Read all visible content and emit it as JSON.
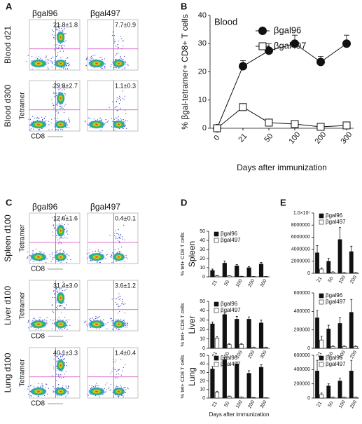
{
  "panel_labels": [
    "A",
    "B",
    "C",
    "D",
    "E"
  ],
  "flow_a": {
    "columns": [
      "βgal96",
      "βgal497"
    ],
    "x_label": "CD8",
    "y_label": "Tetramer",
    "rows": [
      {
        "label": "Blood d21",
        "values": [
          "21.8±1.8",
          "7.7±0.9"
        ]
      },
      {
        "label": "Blood d300",
        "values": [
          "29.8±2.7",
          "1.1±0.3"
        ]
      }
    ]
  },
  "flow_c": {
    "columns": [
      "βgal96",
      "βgal497"
    ],
    "x_label": "CD8",
    "y_label": "Tetramer",
    "rows": [
      {
        "label": "Spleen d100",
        "values": [
          "12.6±1.6",
          "0.4±0.1"
        ]
      },
      {
        "label": "Liver d100",
        "values": [
          "31.4±3.0",
          "3.6±1.2"
        ]
      },
      {
        "label": "Lung d100",
        "values": [
          "40.1±3.3",
          "1.4±0.4"
        ]
      }
    ]
  },
  "chart_data": [
    {
      "type": "line",
      "title": "Blood",
      "y_label": "% βgal-tetramer+ CD8+ T cells",
      "x_label": "Days after immunization",
      "categories": [
        "0",
        "21",
        "50",
        "100",
        "200",
        "300"
      ],
      "ylim": [
        0,
        40
      ],
      "yticks": [
        0,
        10,
        20,
        30,
        40
      ],
      "series": [
        {
          "name": "βgal96",
          "color": "#111111",
          "values": [
            0,
            22,
            27.5,
            30,
            23.5,
            30
          ],
          "errors": [
            0,
            2,
            2.5,
            3,
            2,
            3
          ]
        },
        {
          "name": "βgal497",
          "color": "#ffffff",
          "values": [
            0,
            7.5,
            2,
            1.5,
            0.5,
            1
          ],
          "errors": [
            0,
            0.8,
            0.4,
            0.3,
            0.2,
            0.2
          ]
        }
      ]
    },
    {
      "type": "bar",
      "row_label": "Spleen",
      "y_label": "% tet+ CD8 T cells",
      "categories": [
        "21",
        "50",
        "100",
        "200",
        "300"
      ],
      "ylim": [
        0,
        50
      ],
      "yticks": [
        0,
        10,
        20,
        30,
        40,
        50
      ],
      "series": [
        {
          "name": "βgal96",
          "color": "#111111",
          "values": [
            7,
            15,
            12,
            10,
            14
          ],
          "errors": [
            1.5,
            2.5,
            1.5,
            1.2,
            1.8
          ]
        },
        {
          "name": "βgal497",
          "color": "#ffffff",
          "values": [
            1,
            1,
            0.5,
            0.3,
            0.3
          ],
          "errors": [
            0.4,
            0.3,
            0.2,
            0.1,
            0.1
          ]
        }
      ]
    },
    {
      "type": "bar",
      "row_label": "Liver",
      "y_label": "% tet+ CD8 T cells",
      "categories": [
        "21",
        "50",
        "100",
        "200",
        "300"
      ],
      "ylim": [
        0,
        50
      ],
      "yticks": [
        0,
        10,
        20,
        30,
        40,
        50
      ],
      "series": [
        {
          "name": "βgal96",
          "color": "#111111",
          "values": [
            26,
            36,
            31,
            31,
            27
          ],
          "errors": [
            2,
            2,
            3,
            2.5,
            3
          ]
        },
        {
          "name": "βgal497",
          "color": "#ffffff",
          "values": [
            11,
            4,
            4,
            1,
            1
          ],
          "errors": [
            1.5,
            0.8,
            1,
            0.3,
            0.3
          ]
        }
      ]
    },
    {
      "type": "bar",
      "row_label": "Lung",
      "y_label": "% tet+ CD8 T cells",
      "x_label": "Days after immunization",
      "categories": [
        "21",
        "50",
        "100",
        "200",
        "300"
      ],
      "ylim": [
        0,
        50
      ],
      "yticks": [
        0,
        10,
        20,
        30,
        40,
        50
      ],
      "series": [
        {
          "name": "βgal96",
          "color": "#111111",
          "values": [
            34,
            45,
            40,
            29,
            36
          ],
          "errors": [
            3,
            2,
            2,
            3,
            3
          ]
        },
        {
          "name": "βgal497",
          "color": "#ffffff",
          "values": [
            7,
            2,
            1,
            0.5,
            0.3
          ],
          "errors": [
            1,
            0.4,
            0.3,
            0.2,
            0.1
          ]
        }
      ]
    },
    {
      "type": "bar",
      "categories": [
        "21",
        "50",
        "100",
        "200"
      ],
      "ylim": [
        0,
        10000000
      ],
      "yticks": [
        0,
        2000000,
        4000000,
        6000000,
        8000000,
        {
          "value": 10000000,
          "label": "1.0×10⁷"
        }
      ],
      "series": [
        {
          "name": "βgal96",
          "color": "#111111",
          "values": [
            3400000,
            2000000,
            5600000,
            3600000
          ],
          "errors": [
            1200000,
            500000,
            2000000,
            900000
          ]
        },
        {
          "name": "βgal497",
          "color": "#ffffff",
          "values": [
            700000,
            200000,
            100000,
            100000
          ],
          "errors": [
            200000,
            50000,
            30000,
            30000
          ]
        }
      ]
    },
    {
      "type": "bar",
      "categories": [
        "21",
        "50",
        "100",
        "200"
      ],
      "ylim": [
        0,
        600000
      ],
      "yticks": [
        0,
        200000,
        400000,
        600000
      ],
      "series": [
        {
          "name": "βgal96",
          "color": "#111111",
          "values": [
            330000,
            210000,
            270000,
            390000
          ],
          "errors": [
            80000,
            40000,
            60000,
            140000
          ]
        },
        {
          "name": "βgal497",
          "color": "#ffffff",
          "values": [
            90000,
            20000,
            20000,
            20000
          ],
          "errors": [
            40000,
            5000,
            5000,
            5000
          ]
        }
      ]
    },
    {
      "type": "bar",
      "categories": [
        "21",
        "50",
        "100",
        "200"
      ],
      "ylim": [
        0,
        600000
      ],
      "yticks": [
        0,
        200000,
        400000,
        600000
      ],
      "series": [
        {
          "name": "βgal96",
          "color": "#111111",
          "values": [
            380000,
            170000,
            240000,
            380000
          ],
          "errors": [
            150000,
            30000,
            40000,
            150000
          ]
        },
        {
          "name": "βgal497",
          "color": "#ffffff",
          "values": [
            50000,
            10000,
            10000,
            10000
          ],
          "errors": [
            20000,
            3000,
            3000,
            3000
          ]
        }
      ]
    }
  ]
}
